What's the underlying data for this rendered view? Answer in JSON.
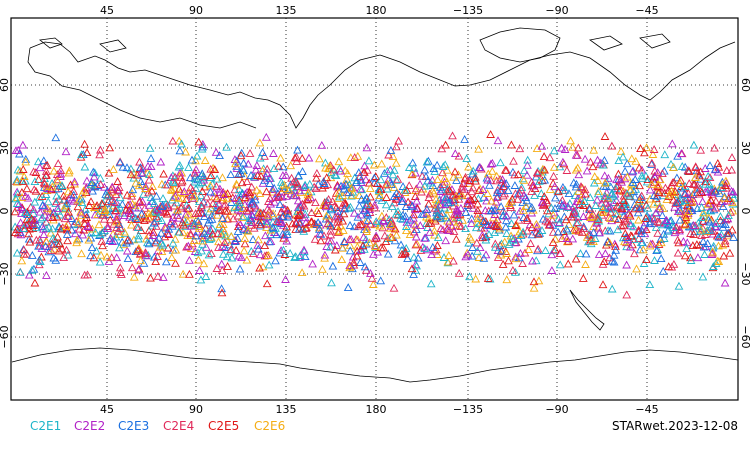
{
  "map": {
    "lon_ticks_top": [
      "45",
      "90",
      "135",
      "180",
      "−135",
      "−90",
      "−45"
    ],
    "lon_ticks_bottom": [
      "45",
      "90",
      "135",
      "180",
      "−135",
      "−90",
      "−45"
    ],
    "lat_ticks_left": [
      "60",
      "30",
      "0",
      "−30",
      "−60"
    ],
    "lat_ticks_right": [
      "60",
      "30",
      "0",
      "−30",
      "−60"
    ],
    "legend": [
      {
        "label": "C2E1",
        "color": "#1fb5c9"
      },
      {
        "label": "C2E2",
        "color": "#b222c7"
      },
      {
        "label": "C2E3",
        "color": "#1b6fe0"
      },
      {
        "label": "C2E4",
        "color": "#e02a5a"
      },
      {
        "label": "C2E5",
        "color": "#e01818"
      },
      {
        "label": "C2E6",
        "color": "#f5ad14"
      }
    ],
    "product_stamp": "STARwet.2023-12-08",
    "marker": "triangle-outline",
    "grid": "dotted"
  }
}
